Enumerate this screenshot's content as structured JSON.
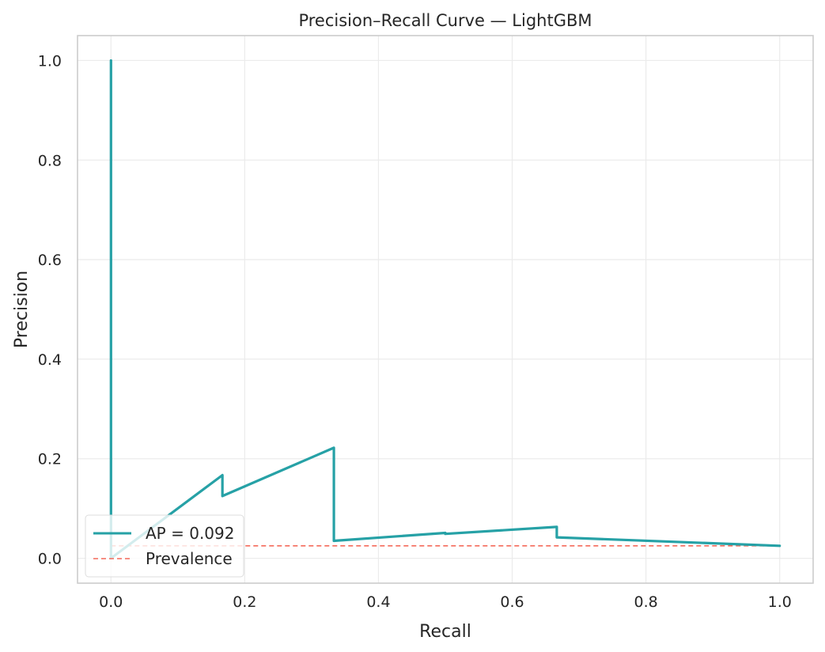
{
  "chart_data": {
    "type": "line",
    "title": "Precision–Recall Curve — LightGBM",
    "xlabel": "Recall",
    "ylabel": "Precision",
    "xlim": [
      -0.05,
      1.05
    ],
    "ylim": [
      -0.05,
      1.05
    ],
    "xticks": [
      0.0,
      0.2,
      0.4,
      0.6,
      0.8,
      1.0
    ],
    "xtick_labels": [
      "0.0",
      "0.2",
      "0.4",
      "0.6",
      "0.8",
      "1.0"
    ],
    "yticks": [
      0.0,
      0.2,
      0.4,
      0.6,
      0.8,
      1.0
    ],
    "ytick_labels": [
      "0.0",
      "0.2",
      "0.4",
      "0.6",
      "0.8",
      "1.0"
    ],
    "grid": true,
    "legend_position": "lower-left",
    "series": [
      {
        "name": "AP = 0.092",
        "color": "#26a1a6",
        "style": "solid",
        "x": [
          0.0,
          0.0,
          0.0,
          0.1667,
          0.1667,
          0.3333,
          0.3333,
          0.5,
          0.5,
          0.6667,
          0.6667,
          1.0
        ],
        "y": [
          1.0,
          0.0,
          0.0,
          0.167,
          0.125,
          0.222,
          0.035,
          0.051,
          0.049,
          0.063,
          0.042,
          0.025
        ]
      },
      {
        "name": "Prevalence",
        "color": "#f46a5b",
        "style": "dashed",
        "x": [
          0.0,
          1.0
        ],
        "y": [
          0.025,
          0.025
        ]
      }
    ]
  }
}
